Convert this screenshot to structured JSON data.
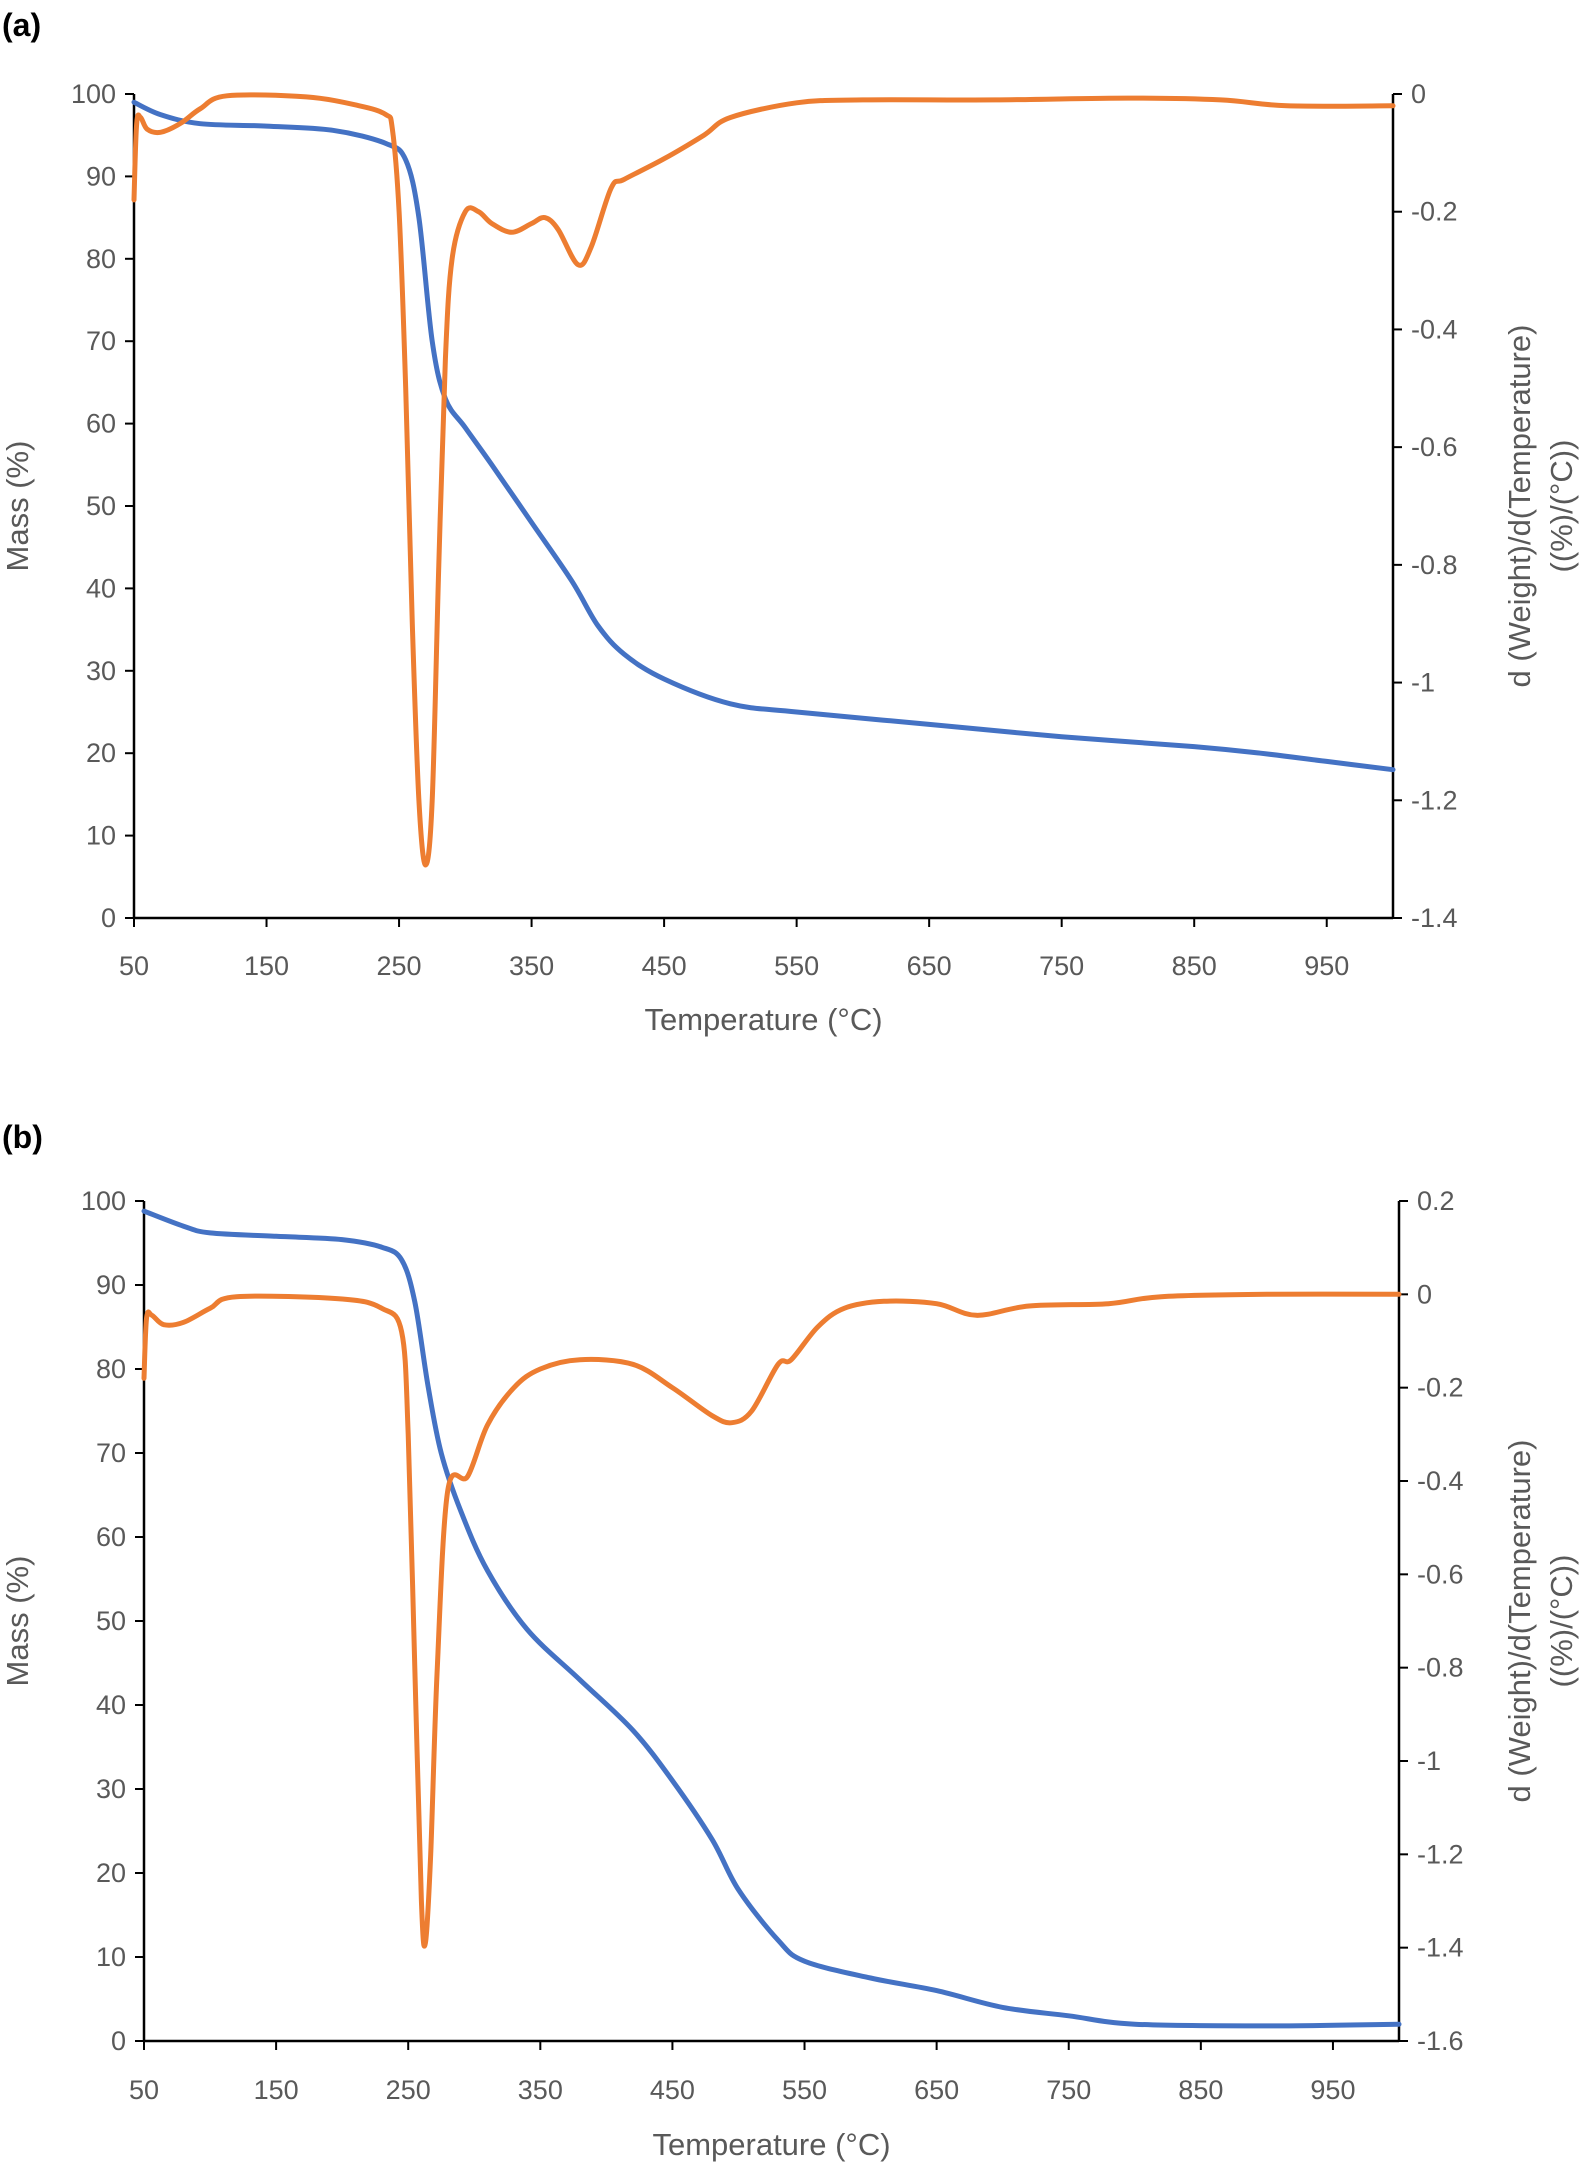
{
  "chart_data": [
    {
      "panel_label": "(a)",
      "type": "line",
      "xlabel": "Temperature (°C)",
      "ylabel": "Mass (%)",
      "y2label_line1": "d (Weight)/d(Temperature)",
      "y2label_line2": "((%)/(°C))",
      "xlim": [
        50,
        1000
      ],
      "xticks": [
        50,
        150,
        250,
        350,
        450,
        550,
        650,
        750,
        850,
        950
      ],
      "ylim": [
        0,
        100
      ],
      "yticks": [
        0,
        10,
        20,
        30,
        40,
        50,
        60,
        70,
        80,
        90,
        100
      ],
      "y2lim": [
        -1.4,
        0
      ],
      "y2ticks": [
        -1.4,
        -1.2,
        -1,
        -0.8,
        -0.6,
        -0.4,
        -0.2,
        0
      ],
      "grid": false,
      "series": [
        {
          "axis": "left",
          "color": "#4472C4",
          "x": [
            50,
            70,
            100,
            150,
            200,
            240,
            255,
            265,
            275,
            285,
            300,
            320,
            350,
            380,
            400,
            420,
            450,
            500,
            550,
            650,
            750,
            850,
            900,
            950,
            1000
          ],
          "y": [
            99,
            97.5,
            96.4,
            96.1,
            95.6,
            94,
            92,
            85,
            70,
            63,
            59.5,
            55,
            48,
            41,
            35.5,
            32,
            29,
            26,
            25,
            23.5,
            22,
            20.8,
            20,
            19,
            18
          ]
        },
        {
          "axis": "right",
          "color": "#ED7D31",
          "x": [
            50,
            52,
            55,
            60,
            70,
            85,
            100,
            120,
            180,
            220,
            240,
            245,
            250,
            255,
            260,
            265,
            270,
            275,
            280,
            285,
            290,
            300,
            310,
            320,
            335,
            350,
            360,
            370,
            385,
            395,
            410,
            420,
            450,
            480,
            500,
            550,
            600,
            700,
            800,
            870,
            920,
            1000
          ],
          "y": [
            -0.18,
            -0.05,
            -0.04,
            -0.06,
            -0.065,
            -0.05,
            -0.025,
            -0.003,
            -0.005,
            -0.02,
            -0.035,
            -0.06,
            -0.2,
            -0.5,
            -0.9,
            -1.2,
            -1.31,
            -1.2,
            -0.8,
            -0.45,
            -0.28,
            -0.2,
            -0.2,
            -0.22,
            -0.235,
            -0.22,
            -0.21,
            -0.23,
            -0.29,
            -0.26,
            -0.16,
            -0.145,
            -0.11,
            -0.07,
            -0.04,
            -0.015,
            -0.01,
            -0.01,
            -0.007,
            -0.01,
            -0.02,
            -0.02
          ]
        }
      ]
    },
    {
      "panel_label": "(b)",
      "type": "line",
      "xlabel": "Temperature (°C)",
      "ylabel": "Mass (%)",
      "y2label_line1": "d (Weight)/d(Temperature)",
      "y2label_line2": "((%)/(°C))",
      "xlim": [
        50,
        1000
      ],
      "xticks": [
        50,
        150,
        250,
        350,
        450,
        550,
        650,
        750,
        850,
        950
      ],
      "ylim": [
        0,
        100
      ],
      "yticks": [
        0,
        10,
        20,
        30,
        40,
        50,
        60,
        70,
        80,
        90,
        100
      ],
      "y2lim": [
        -1.6,
        0.2
      ],
      "y2ticks": [
        -1.6,
        -1.4,
        -1.2,
        -1,
        -0.8,
        -0.6,
        -0.4,
        -0.2,
        0,
        0.2
      ],
      "grid": false,
      "series": [
        {
          "axis": "left",
          "color": "#4472C4",
          "x": [
            50,
            80,
            100,
            150,
            200,
            230,
            245,
            255,
            265,
            275,
            290,
            310,
            340,
            380,
            420,
            450,
            480,
            500,
            530,
            550,
            600,
            650,
            700,
            750,
            800,
            900,
            1000
          ],
          "y": [
            98.8,
            97,
            96.2,
            95.8,
            95.4,
            94.5,
            93,
            88,
            78,
            70,
            63,
            56,
            49,
            43,
            37,
            31,
            24,
            18,
            12,
            9.5,
            7.5,
            6,
            4,
            3,
            2,
            1.8,
            2
          ]
        },
        {
          "axis": "right",
          "color": "#ED7D31",
          "x": [
            50,
            52,
            56,
            65,
            80,
            100,
            120,
            200,
            230,
            245,
            250,
            255,
            260,
            263,
            267,
            272,
            280,
            295,
            310,
            330,
            350,
            380,
            420,
            450,
            480,
            495,
            510,
            530,
            540,
            560,
            580,
            610,
            650,
            680,
            720,
            780,
            820,
            900,
            1000
          ],
          "y": [
            -0.18,
            -0.05,
            -0.045,
            -0.065,
            -0.06,
            -0.03,
            -0.005,
            -0.01,
            -0.03,
            -0.08,
            -0.3,
            -0.8,
            -1.3,
            -1.39,
            -1.2,
            -0.8,
            -0.42,
            -0.39,
            -0.28,
            -0.2,
            -0.16,
            -0.14,
            -0.15,
            -0.2,
            -0.26,
            -0.275,
            -0.25,
            -0.15,
            -0.14,
            -0.07,
            -0.03,
            -0.015,
            -0.02,
            -0.045,
            -0.025,
            -0.02,
            -0.005,
            0,
            0
          ]
        }
      ]
    }
  ]
}
